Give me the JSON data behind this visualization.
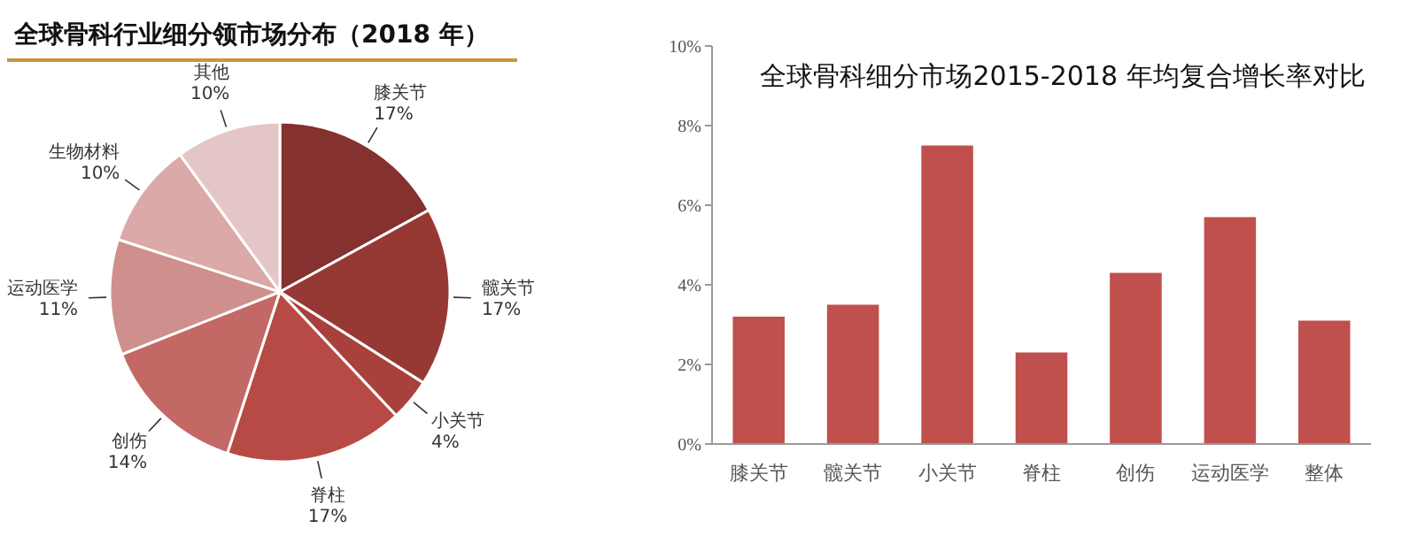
{
  "chart_data": [
    {
      "type": "pie",
      "title": "全球骨科行业细分领市场分布（2018 年）",
      "categories": [
        "膝关节",
        "髋关节",
        "小关节",
        "脊柱",
        "创伤",
        "运动医学",
        "生物材料",
        "其他"
      ],
      "values": [
        17,
        17,
        4,
        17,
        14,
        11,
        10,
        10
      ],
      "value_labels": [
        "17%",
        "17%",
        "4%",
        "17%",
        "14%",
        "11%",
        "10%",
        "10%"
      ],
      "colors": [
        "#84312f",
        "#963935",
        "#a8403c",
        "#b84a46",
        "#c46865",
        "#cf8f8c",
        "#dba9a8",
        "#e5c6c6"
      ]
    },
    {
      "type": "bar",
      "title": "全球骨科细分市场2015-2018 年均复合增长率对比",
      "categories": [
        "膝关节",
        "髋关节",
        "小关节",
        "脊柱",
        "创伤",
        "运动医学",
        "整体"
      ],
      "values": [
        3.2,
        3.5,
        7.5,
        2.3,
        4.3,
        5.7,
        3.1
      ],
      "color": "#c0504d",
      "ylim": [
        0,
        10
      ],
      "yticks": [
        {
          "value": 0,
          "label": "0%"
        },
        {
          "value": 2,
          "label": "2%"
        },
        {
          "value": 4,
          "label": "4%"
        },
        {
          "value": 6,
          "label": "6%"
        },
        {
          "value": 8,
          "label": "8%"
        },
        {
          "value": 10,
          "label": "10%"
        }
      ],
      "grid": false
    }
  ]
}
